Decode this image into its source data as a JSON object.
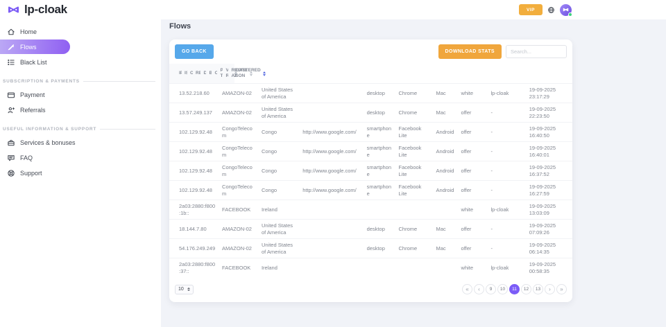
{
  "brand": {
    "name": "lp-cloak",
    "logo_icon": "mask-icon"
  },
  "topbar": {
    "vip_label": "VIP",
    "language_icon": "globe-icon",
    "avatar_status": "online"
  },
  "sidebar": {
    "sections": [
      {
        "label": "",
        "items": [
          {
            "label": "Home",
            "icon": "home-icon",
            "active": false
          },
          {
            "label": "Flows",
            "icon": "flows-icon",
            "active": true
          },
          {
            "label": "Black List",
            "icon": "list-icon",
            "active": false
          }
        ]
      },
      {
        "label": "Subscription & payments",
        "items": [
          {
            "label": "Payment",
            "icon": "payment-icon",
            "active": false
          },
          {
            "label": "Referrals",
            "icon": "referrals-icon",
            "active": false
          }
        ]
      },
      {
        "label": "Useful information & support",
        "items": [
          {
            "label": "Services & bonuses",
            "icon": "services-icon",
            "active": false
          },
          {
            "label": "FAQ",
            "icon": "faq-icon",
            "active": false
          },
          {
            "label": "Support",
            "icon": "support-icon",
            "active": false
          }
        ]
      }
    ]
  },
  "main": {
    "title": "Flows",
    "toolbar": {
      "go_back_label": "GO BACK",
      "download_stats_label": "DOWNLOAD STATS",
      "search_placeholder": "Search..."
    },
    "table": {
      "columns": [
        {
          "label": "IP",
          "sortable": true,
          "sort_active": false
        },
        {
          "label": "ISP",
          "sortable": true,
          "sort_active": false
        },
        {
          "label": "Country",
          "sortable": true,
          "sort_active": false
        },
        {
          "label": "Referer",
          "sortable": true,
          "sort_active": false
        },
        {
          "label": "Device",
          "sortable": true,
          "sort_active": false
        },
        {
          "label": "Browser",
          "sortable": true,
          "sort_active": false
        },
        {
          "label": "OCS",
          "sortable": true,
          "sort_active": false
        },
        {
          "label": "Page Type",
          "sortable": true,
          "sort_active": false
        },
        {
          "label": "Validate Reason",
          "sortable": true,
          "sort_active": false
        },
        {
          "label": "Registered At",
          "sortable": true,
          "sort_active": true
        }
      ],
      "rows": [
        [
          "13.52.218.60",
          "AMAZON-02",
          "United States of America",
          "",
          "desktop",
          "Chrome",
          "Mac",
          "white",
          "lp-cloak",
          "19-09-2025 23:17:29"
        ],
        [
          "13.57.249.137",
          "AMAZON-02",
          "United States of America",
          "",
          "desktop",
          "Chrome",
          "Mac",
          "offer",
          "-",
          "19-09-2025 22:23:50"
        ],
        [
          "102.129.92.48",
          "CongoTelecom",
          "Congo",
          "http://www.google.com/",
          "smartphone",
          "Facebook Lite",
          "Android",
          "offer",
          "-",
          "19-09-2025 16:40:50"
        ],
        [
          "102.129.92.48",
          "CongoTelecom",
          "Congo",
          "http://www.google.com/",
          "smartphone",
          "Facebook Lite",
          "Android",
          "offer",
          "-",
          "19-09-2025 16:40:01"
        ],
        [
          "102.129.92.48",
          "CongoTelecom",
          "Congo",
          "http://www.google.com/",
          "smartphone",
          "Facebook Lite",
          "Android",
          "offer",
          "-",
          "19-09-2025 16:37:52"
        ],
        [
          "102.129.92.48",
          "CongoTelecom",
          "Congo",
          "http://www.google.com/",
          "smartphone",
          "Facebook Lite",
          "Android",
          "offer",
          "-",
          "19-09-2025 16:27:59"
        ],
        [
          "2a03:2880:f800:1b::",
          "FACEBOOK",
          "Ireland",
          "",
          "",
          "",
          "",
          "white",
          "lp-cloak",
          "19-09-2025 13:03:09"
        ],
        [
          "18.144.7.80",
          "AMAZON-02",
          "United States of America",
          "",
          "desktop",
          "Chrome",
          "Mac",
          "offer",
          "-",
          "19-09-2025 07:09:26"
        ],
        [
          "54.176.249.249",
          "AMAZON-02",
          "United States of America",
          "",
          "desktop",
          "Chrome",
          "Mac",
          "offer",
          "-",
          "19-09-2025 06:14:35"
        ],
        [
          "2a03:2880:f800:37::",
          "FACEBOOK",
          "Ireland",
          "",
          "",
          "",
          "",
          "white",
          "lp-cloak",
          "19-09-2025 00:58:35"
        ]
      ]
    },
    "footer": {
      "page_size": "10",
      "pagination": {
        "first": "«",
        "prev": "‹",
        "next": "›",
        "last": "»",
        "pages": [
          "9",
          "10",
          "11",
          "12",
          "13"
        ],
        "active_page": "11"
      }
    }
  },
  "colors": {
    "accent_purple": "#8f5ff2",
    "vip_orange": "#f2ae3d",
    "go_back_blue": "#56a8ea",
    "download_orange": "#f0a63c",
    "active_page_purple": "#7b5cf7",
    "online_green": "#3dd27c",
    "sort_active_blue": "#5b6ee1"
  }
}
